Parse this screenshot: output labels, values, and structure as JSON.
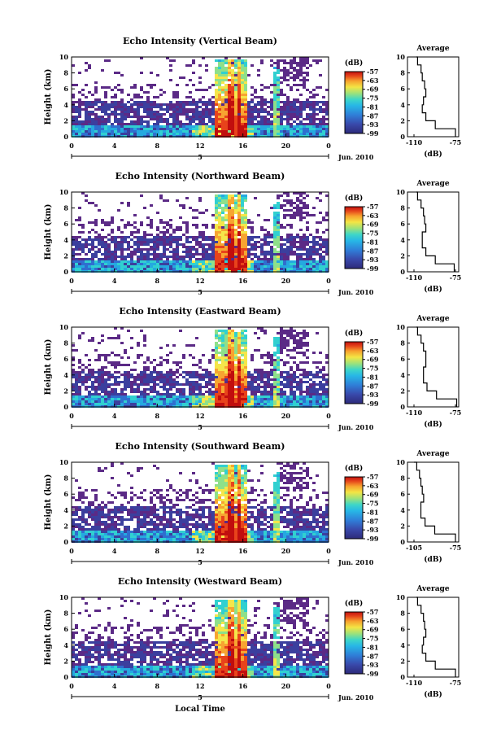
{
  "figure": {
    "xlabel": "Local Time",
    "ylabel": "Height (km)",
    "date_label": "Jun. 2010",
    "day_label": "5",
    "colorbar_unit": "(dB)",
    "average_title": "Average",
    "average_xlabel": "(dB)"
  },
  "chart_data": [
    {
      "type": "heatmap",
      "title": "Echo Intensity (Vertical Beam)",
      "xlabel": "",
      "ylabel": "Height (km)",
      "x_ticks": [
        "0",
        "4",
        "8",
        "12",
        "16",
        "20",
        "0"
      ],
      "y_ticks": [
        "0",
        "2",
        "4",
        "6",
        "8",
        "10"
      ],
      "xlim": [
        0,
        24
      ],
      "ylim": [
        0,
        10
      ],
      "colorbar": {
        "label": "(dB)",
        "ticks": [
          "-57",
          "-63",
          "-69",
          "-75",
          "-81",
          "-87",
          "-93",
          "-99"
        ],
        "range": [
          -99,
          -57
        ]
      },
      "average": {
        "title": "Average",
        "xlabel": "(dB)",
        "x_ticks": [
          "-110",
          "-75"
        ],
        "y_ticks": [
          "0",
          "2",
          "4",
          "6",
          "8",
          "10"
        ],
        "height": [
          0,
          1,
          2,
          3,
          4,
          5,
          6,
          7,
          8,
          9,
          10
        ],
        "value": [
          -75,
          -92,
          -100,
          -103,
          -102,
          -100,
          -101,
          -103,
          -104,
          -107,
          -108
        ]
      }
    },
    {
      "type": "heatmap",
      "title": "Echo Intensity (Northward Beam)",
      "xlabel": "",
      "ylabel": "Height (km)",
      "x_ticks": [
        "0",
        "4",
        "8",
        "12",
        "16",
        "20",
        "0"
      ],
      "y_ticks": [
        "0",
        "2",
        "4",
        "6",
        "8",
        "10"
      ],
      "xlim": [
        0,
        24
      ],
      "ylim": [
        0,
        10
      ],
      "colorbar": {
        "label": "(dB)",
        "ticks": [
          "-57",
          "-63",
          "-69",
          "-75",
          "-81",
          "-87",
          "-93",
          "-99"
        ],
        "range": [
          -99,
          -57
        ]
      },
      "average": {
        "title": "Average",
        "xlabel": "(dB)",
        "x_ticks": [
          "-110",
          "-75"
        ],
        "y_ticks": [
          "0",
          "2",
          "4",
          "6",
          "8",
          "10"
        ],
        "height": [
          0,
          1,
          2,
          3,
          4,
          5,
          6,
          7,
          8,
          9,
          10
        ],
        "value": [
          -76,
          -92,
          -100,
          -103,
          -103,
          -100,
          -101,
          -102,
          -104,
          -107,
          -108
        ]
      }
    },
    {
      "type": "heatmap",
      "title": "Echo Intensity (Eastward Beam)",
      "xlabel": "",
      "ylabel": "Height (km)",
      "x_ticks": [
        "0",
        "4",
        "8",
        "12",
        "16",
        "20",
        "0"
      ],
      "y_ticks": [
        "0",
        "2",
        "4",
        "6",
        "8",
        "10"
      ],
      "xlim": [
        0,
        24
      ],
      "ylim": [
        0,
        10
      ],
      "colorbar": {
        "label": "(dB)",
        "ticks": [
          "-57",
          "-63",
          "-69",
          "-75",
          "-81",
          "-87",
          "-93",
          "-99"
        ],
        "range": [
          -99,
          -57
        ]
      },
      "average": {
        "title": "Average",
        "xlabel": "(dB)",
        "x_ticks": [
          "-110",
          "-75"
        ],
        "y_ticks": [
          "0",
          "2",
          "4",
          "6",
          "8",
          "10"
        ],
        "height": [
          0,
          1,
          2,
          3,
          4,
          5,
          6,
          7,
          8,
          9,
          10
        ],
        "value": [
          -74,
          -91,
          -99,
          -102,
          -102,
          -100,
          -100,
          -102,
          -104,
          -107,
          -108
        ]
      }
    },
    {
      "type": "heatmap",
      "title": "Echo Intensity (Southward Beam)",
      "xlabel": "",
      "ylabel": "Height (km)",
      "x_ticks": [
        "0",
        "4",
        "8",
        "12",
        "16",
        "20",
        "0"
      ],
      "y_ticks": [
        "0",
        "2",
        "4",
        "6",
        "8",
        "10"
      ],
      "xlim": [
        0,
        24
      ],
      "ylim": [
        0,
        10
      ],
      "colorbar": {
        "label": "(dB)",
        "ticks": [
          "-57",
          "-63",
          "-69",
          "-75",
          "-81",
          "-87",
          "-93",
          "-99"
        ],
        "range": [
          -99,
          -57
        ]
      },
      "average": {
        "title": "Average",
        "xlabel": "(dB)",
        "x_ticks": [
          "-105",
          "-75"
        ],
        "y_ticks": [
          "0",
          "2",
          "4",
          "6",
          "8",
          "10"
        ],
        "height": [
          0,
          1,
          2,
          3,
          4,
          5,
          6,
          7,
          8,
          9,
          10
        ],
        "value": [
          -75,
          -90,
          -97,
          -100,
          -100,
          -98,
          -99,
          -100,
          -101,
          -103,
          -105
        ]
      }
    },
    {
      "type": "heatmap",
      "title": "Echo Intensity (Westward Beam)",
      "xlabel": "Local Time",
      "ylabel": "Height (km)",
      "x_ticks": [
        "0",
        "4",
        "8",
        "12",
        "16",
        "20",
        "0"
      ],
      "y_ticks": [
        "0",
        "2",
        "4",
        "6",
        "8",
        "10"
      ],
      "xlim": [
        0,
        24
      ],
      "ylim": [
        0,
        10
      ],
      "colorbar": {
        "label": "(dB)",
        "ticks": [
          "-57",
          "-63",
          "-69",
          "-75",
          "-81",
          "-87",
          "-93",
          "-99"
        ],
        "range": [
          -99,
          -57
        ]
      },
      "average": {
        "title": "Average",
        "xlabel": "(dB)",
        "x_ticks": [
          "-110",
          "-75"
        ],
        "y_ticks": [
          "0",
          "2",
          "4",
          "6",
          "8",
          "10"
        ],
        "height": [
          0,
          1,
          2,
          3,
          4,
          5,
          6,
          7,
          8,
          9,
          10
        ],
        "value": [
          -75,
          -92,
          -100,
          -103,
          -102,
          -100,
          -101,
          -102,
          -104,
          -107,
          -108
        ]
      }
    }
  ],
  "colors": {
    "scale": [
      "#5b2a86",
      "#3b3f9e",
      "#2f6fcf",
      "#25a9e0",
      "#31d0d0",
      "#8ee08a",
      "#f5e64a",
      "#f7a431",
      "#e8431b",
      "#c10e0e"
    ],
    "background": "#ffffff"
  }
}
